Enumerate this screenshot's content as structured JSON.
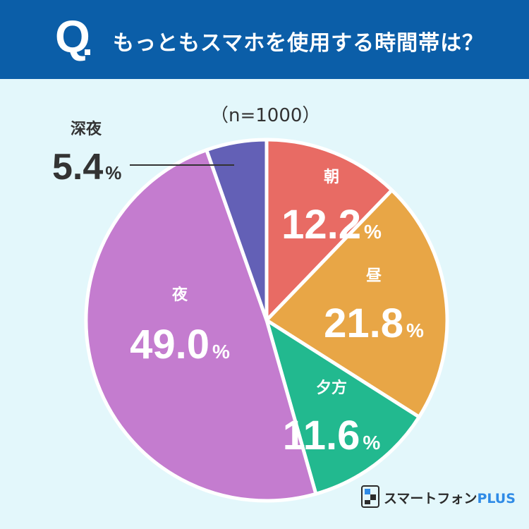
{
  "header": {
    "q_label": "Q",
    "title": "もっともスマホを使用する時間帯は？"
  },
  "sample_size": "（n=1000）",
  "colors": {
    "header_bg": "#0b5ea8",
    "background": "#e3f7fb"
  },
  "logo": {
    "brand": "スマートフォン",
    "plus": "PLUS"
  },
  "chart_data": {
    "type": "pie",
    "title": "もっともスマホを使用する時間帯は？",
    "start": "12 o'clock, clockwise",
    "unit": "%",
    "slices": [
      {
        "label": "朝",
        "value": 12.2,
        "display": "12.2",
        "color": "#e86b64"
      },
      {
        "label": "昼",
        "value": 21.8,
        "display": "21.8",
        "color": "#e8a646"
      },
      {
        "label": "夕方",
        "value": 11.6,
        "display": "11.6",
        "color": "#22b98f"
      },
      {
        "label": "夜",
        "value": 49.0,
        "display": "49.0",
        "color": "#c47ccf"
      },
      {
        "label": "深夜",
        "value": 5.4,
        "display": "5.4",
        "color": "#6360b6"
      }
    ]
  }
}
